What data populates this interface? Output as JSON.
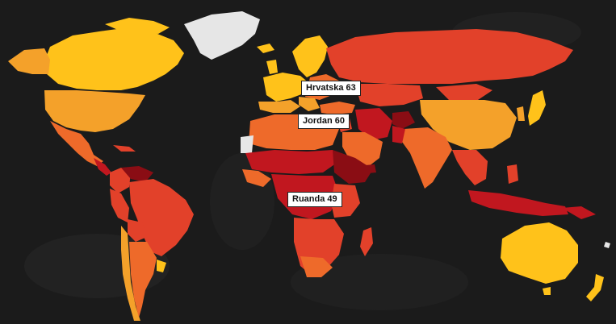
{
  "map": {
    "colors": {
      "background": "#1b1b1b",
      "ocean_dark": "#242424",
      "very_high": "#ffc21a",
      "high": "#f4a12a",
      "medium": "#ee6a2a",
      "low": "#e2412a",
      "very_low": "#c1171f",
      "lowest": "#8a0d14",
      "no_data": "#e6e6e6"
    },
    "labels": [
      {
        "id": "hrvatska",
        "text": "Hrvatska 63"
      },
      {
        "id": "jordan",
        "text": "Jordan 60"
      },
      {
        "id": "ruanda",
        "text": "Ruanda 49"
      }
    ]
  }
}
